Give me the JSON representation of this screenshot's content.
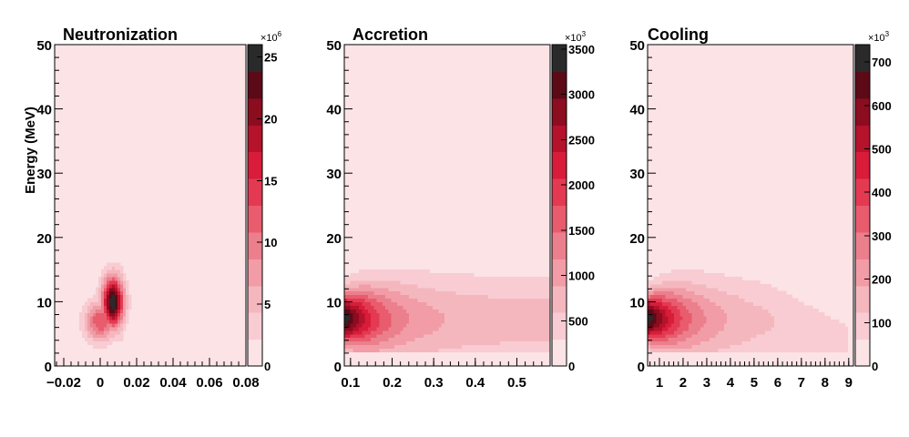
{
  "colors": {
    "palette": [
      "#ffffff",
      "#fbe3e6",
      "#f8ccd2",
      "#f5b7be",
      "#f19ca6",
      "#ec7f8c",
      "#e85c6e",
      "#e33a52",
      "#d81c3a",
      "#b5122b",
      "#8c0c20",
      "#5c0a17",
      "#2a2a2a"
    ],
    "frame": "#000000"
  },
  "chart_data": [
    {
      "type": "heatmap",
      "title": "Neutronization",
      "xlabel": "",
      "ylabel": "Energy (MeV)",
      "xlim": [
        -0.025,
        0.08
      ],
      "ylim": [
        0,
        50
      ],
      "x_ticks": [
        "−0.02",
        "0",
        "0.02",
        "0.04",
        "0.06",
        "0.08"
      ],
      "x_tick_values": [
        -0.02,
        0,
        0.02,
        0.04,
        0.06,
        0.08
      ],
      "y_ticks": [
        "0",
        "10",
        "20",
        "30",
        "40",
        "50"
      ],
      "y_tick_values": [
        0,
        10,
        20,
        30,
        40,
        50
      ],
      "colorbar": {
        "min": 0,
        "max": 26,
        "multiplier": "×10",
        "exponent": "6",
        "ticks": [
          "0",
          "5",
          "10",
          "15",
          "20",
          "25"
        ],
        "tick_values": [
          0,
          5,
          10,
          15,
          20,
          25
        ]
      },
      "peaks": [
        {
          "x": 0.007,
          "y": 10,
          "value": 26
        },
        {
          "x": 0.0,
          "y": 7,
          "value": 13
        }
      ],
      "extent": {
        "emin": 3,
        "emax_peak": 27,
        "x_end": 0.08
      }
    },
    {
      "type": "heatmap",
      "title": "Accretion",
      "xlabel": "",
      "ylabel": "",
      "xlim": [
        0.085,
        0.58
      ],
      "ylim": [
        0,
        50
      ],
      "x_ticks": [
        "0.1",
        "0.2",
        "0.3",
        "0.4",
        "0.5"
      ],
      "x_tick_values": [
        0.1,
        0.2,
        0.3,
        0.4,
        0.5
      ],
      "y_ticks": [
        "0",
        "10",
        "20",
        "30",
        "40",
        "50"
      ],
      "y_tick_values": [
        0,
        10,
        20,
        30,
        40,
        50
      ],
      "colorbar": {
        "min": 0,
        "max": 3550,
        "multiplier": "×10",
        "exponent": "3",
        "ticks": [
          "0",
          "500",
          "1000",
          "1500",
          "2000",
          "2500",
          "3000",
          "3500"
        ],
        "tick_values": [
          0,
          500,
          1000,
          1500,
          2000,
          2500,
          3000,
          3500
        ]
      },
      "peaks": [
        {
          "x": 0.09,
          "y": 7.5,
          "value": 3550
        }
      ],
      "extent": {
        "emin": 2,
        "emax_start": 21,
        "emax_end": 17
      }
    },
    {
      "type": "heatmap",
      "title": "Cooling",
      "xlabel": "",
      "ylabel": "",
      "xlim": [
        0.5,
        9.2
      ],
      "ylim": [
        0,
        50
      ],
      "x_ticks": [
        "1",
        "2",
        "3",
        "4",
        "5",
        "6",
        "7",
        "8",
        "9"
      ],
      "x_tick_values": [
        1,
        2,
        3,
        4,
        5,
        6,
        7,
        8,
        9
      ],
      "y_ticks": [
        "0",
        "10",
        "20",
        "30",
        "40",
        "50"
      ],
      "y_tick_values": [
        0,
        10,
        20,
        30,
        40,
        50
      ],
      "colorbar": {
        "min": 0,
        "max": 740,
        "multiplier": "×10",
        "exponent": "3",
        "ticks": [
          "0",
          "100",
          "200",
          "300",
          "400",
          "500",
          "600",
          "700"
        ],
        "tick_values": [
          0,
          100,
          200,
          300,
          400,
          500,
          600,
          700
        ]
      },
      "peaks": [
        {
          "x": 0.6,
          "y": 7.5,
          "value": 740
        }
      ],
      "extent": {
        "emin": 2,
        "emax_start": 23,
        "x_end": 9
      }
    }
  ]
}
